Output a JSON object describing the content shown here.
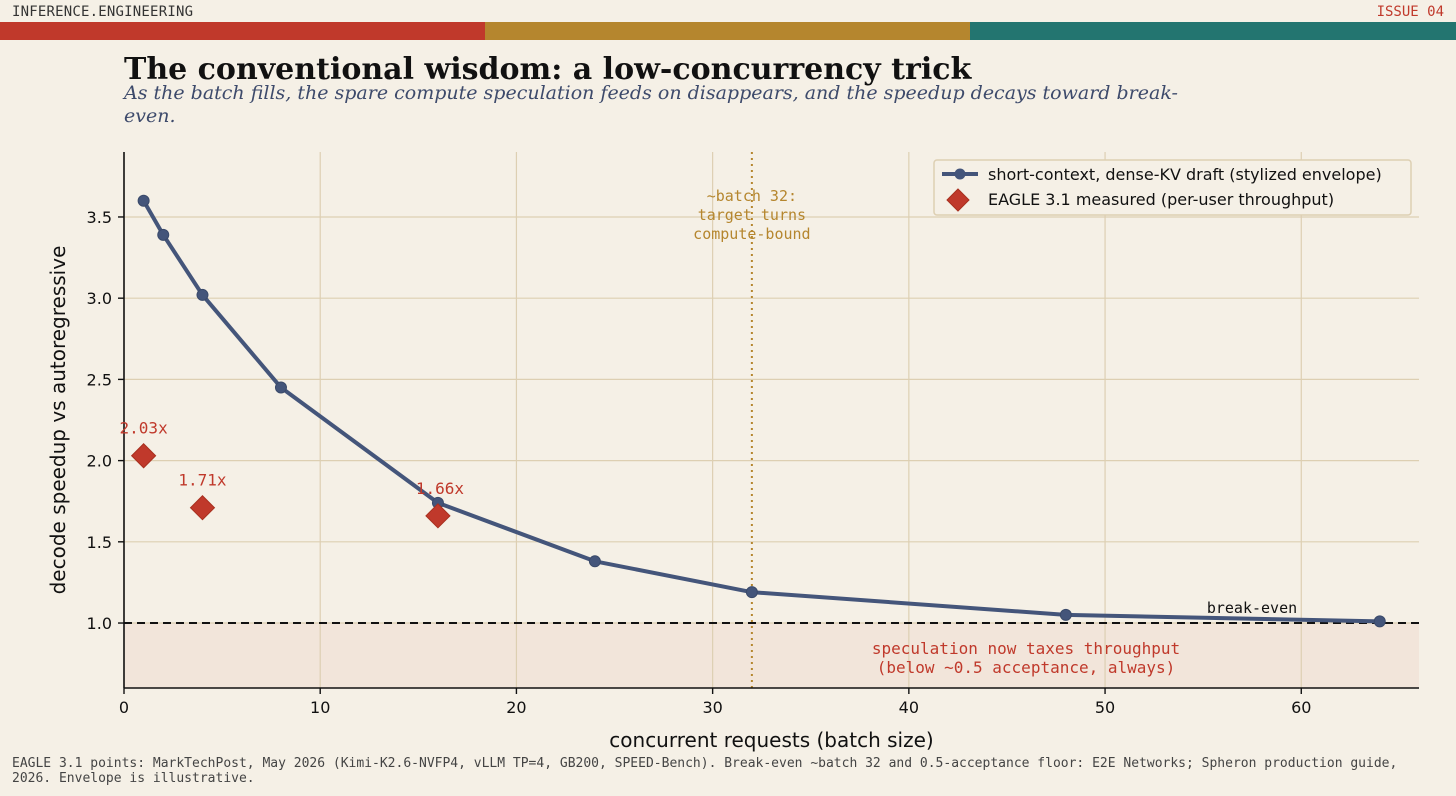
{
  "header": {
    "site": "INFERENCE.ENGINEERING",
    "issue": "ISSUE 04",
    "band_colors": [
      "#c0392b",
      "#b5862e",
      "#237570"
    ]
  },
  "title": "The conventional wisdom: a low-concurrency trick",
  "subtitle": "As the batch fills, the spare compute speculation feeds on disappears, and the speedup decays toward break-even.",
  "footer": "EAGLE 3.1 points: MarkTechPost, May 2026 (Kimi-K2.6-NVFP4, vLLM TP=4, GB200, SPEED-Bench). Break-even ~batch 32 and 0.5-acceptance floor: E2E Networks; Spheron production guide, 2026. Envelope is illustrative.",
  "chart_data": {
    "type": "line",
    "xlabel": "concurrent requests (batch size)",
    "ylabel": "decode speedup vs autoregressive",
    "xlim": [
      0,
      66
    ],
    "ylim": [
      0.6,
      3.9
    ],
    "xticks": [
      0,
      10,
      20,
      30,
      40,
      50,
      60
    ],
    "yticks": [
      1.0,
      1.5,
      2.0,
      2.5,
      3.0,
      3.5
    ],
    "ytick_labels": [
      "1.0",
      "1.5",
      "2.0",
      "2.5",
      "3.0",
      "3.5"
    ],
    "grid": true,
    "legend_position": "top-right",
    "series": [
      {
        "name": "short-context, dense-KV draft (stylized envelope)",
        "kind": "line",
        "color": "#44557a",
        "x": [
          1,
          2,
          4,
          8,
          16,
          24,
          32,
          48,
          64
        ],
        "y": [
          3.6,
          3.39,
          3.02,
          2.45,
          1.74,
          1.38,
          1.19,
          1.05,
          1.01
        ]
      },
      {
        "name": "EAGLE 3.1 measured (per-user throughput)",
        "kind": "scatter",
        "marker": "diamond",
        "color": "#c0392b",
        "x": [
          1,
          4,
          16
        ],
        "y": [
          2.03,
          1.71,
          1.66
        ],
        "labels": [
          "2.03x",
          "1.71x",
          "1.66x"
        ]
      }
    ],
    "reference_lines": {
      "horizontal": {
        "y": 1.0,
        "style": "dashed",
        "color": "#111111",
        "label": "break-even"
      },
      "vertical": {
        "x": 32,
        "style": "dotted",
        "color": "#b5862e",
        "label": [
          "~batch 32:",
          "target turns",
          "compute-bound"
        ]
      }
    },
    "shaded_region": {
      "y_from": 0.6,
      "y_to": 1.0,
      "color": "#f2e5da",
      "label": [
        "speculation now taxes throughput",
        "(below ~0.5 acceptance, always)"
      ],
      "label_color": "#c0392b"
    }
  }
}
